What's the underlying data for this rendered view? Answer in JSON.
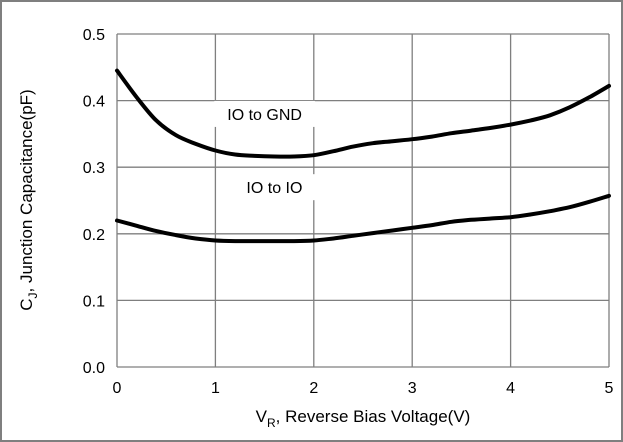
{
  "chart_data": {
    "type": "line",
    "title": "",
    "xlabel": {
      "main": "V",
      "sub": "R",
      "rest": ", Reverse Bias Voltage(V)"
    },
    "ylabel": {
      "main": "C",
      "sub": "J",
      "rest": ", Junction Capacitance(pF)"
    },
    "xlim": [
      0,
      5
    ],
    "ylim": [
      0.0,
      0.5
    ],
    "x_ticks": [
      "0",
      "1",
      "2",
      "3",
      "4",
      "5"
    ],
    "y_ticks": [
      "0.0",
      "0.1",
      "0.2",
      "0.3",
      "0.4",
      "0.5"
    ],
    "grid": true,
    "legend": "none",
    "colors": {
      "line": "#000000",
      "grid": "#7f7f7f",
      "frame": "#7f7f7f"
    },
    "annotations": [
      {
        "text": "IO to GND",
        "x": 1.5,
        "y": 0.38
      },
      {
        "text": "IO to IO",
        "x": 1.6,
        "y": 0.27
      }
    ],
    "series": [
      {
        "x": [
          0,
          0.2,
          0.4,
          0.6,
          0.8,
          1.0,
          1.2,
          1.4,
          1.6,
          1.8,
          2.0,
          2.2,
          2.4,
          2.6,
          2.8,
          3.0,
          3.2,
          3.4,
          3.6,
          3.8,
          4.0,
          4.2,
          4.4,
          4.6,
          4.8,
          5.0
        ],
        "values": [
          0.445,
          0.405,
          0.37,
          0.348,
          0.335,
          0.325,
          0.319,
          0.317,
          0.316,
          0.316,
          0.318,
          0.324,
          0.331,
          0.336,
          0.339,
          0.342,
          0.346,
          0.351,
          0.355,
          0.359,
          0.364,
          0.37,
          0.378,
          0.39,
          0.405,
          0.422
        ]
      },
      {
        "x": [
          0,
          0.2,
          0.4,
          0.6,
          0.8,
          1.0,
          1.2,
          1.4,
          1.6,
          1.8,
          2.0,
          2.2,
          2.4,
          2.6,
          2.8,
          3.0,
          3.2,
          3.4,
          3.6,
          3.8,
          4.0,
          4.2,
          4.4,
          4.6,
          4.8,
          5.0
        ],
        "values": [
          0.22,
          0.212,
          0.204,
          0.198,
          0.193,
          0.19,
          0.189,
          0.189,
          0.189,
          0.189,
          0.19,
          0.193,
          0.197,
          0.201,
          0.205,
          0.209,
          0.213,
          0.218,
          0.221,
          0.223,
          0.225,
          0.229,
          0.234,
          0.24,
          0.248,
          0.257
        ]
      }
    ]
  }
}
